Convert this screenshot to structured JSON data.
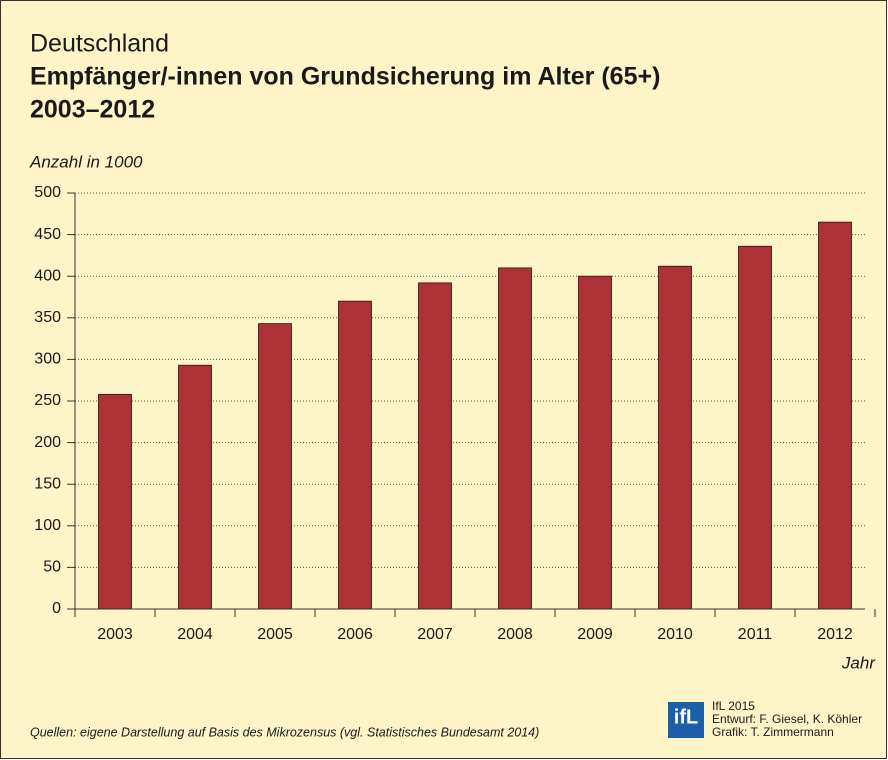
{
  "chart_data": {
    "type": "bar",
    "title_lines": [
      "Deutschland",
      "Empfänger/-innen von Grundsicherung im Alter (65+)",
      "2003–2012"
    ],
    "y_label": "Anzahl in 1000",
    "x_label": "Jahr",
    "categories": [
      "2003",
      "2004",
      "2005",
      "2006",
      "2007",
      "2008",
      "2009",
      "2010",
      "2011",
      "2012"
    ],
    "values": [
      258,
      293,
      343,
      370,
      392,
      410,
      400,
      412,
      436,
      465
    ],
    "color": "#ae3138",
    "ylim": [
      0,
      500
    ],
    "yticks": [
      0,
      50,
      100,
      150,
      200,
      250,
      300,
      350,
      400,
      450,
      500
    ],
    "grid": true,
    "source": "Quellen: eigene Darstellung auf Basis des Mikrozensus (vgl. Statistisches Bundesamt 2014)",
    "logo": "ifL",
    "credits": [
      "IfL 2015",
      "Entwurf: F. Giesel, K. Köhler",
      "Grafik: T. Zimmermann"
    ]
  }
}
